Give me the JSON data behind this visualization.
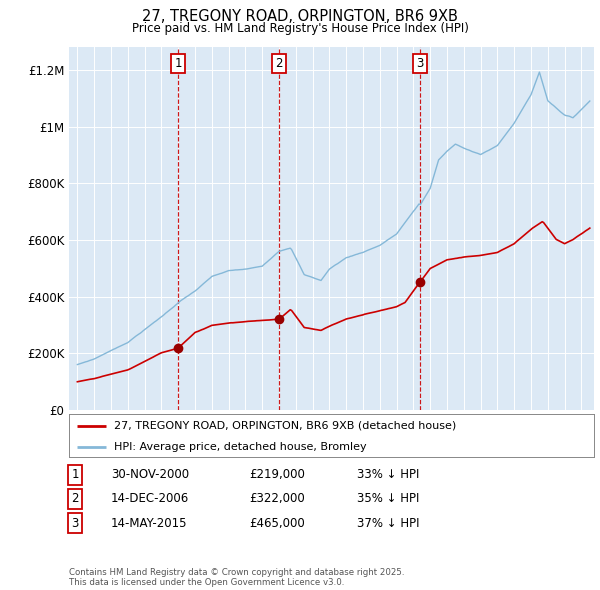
{
  "title_line1": "27, TREGONY ROAD, ORPINGTON, BR6 9XB",
  "title_line2": "Price paid vs. HM Land Registry's House Price Index (HPI)",
  "legend_line1": "27, TREGONY ROAD, ORPINGTON, BR6 9XB (detached house)",
  "legend_line2": "HPI: Average price, detached house, Bromley",
  "sale_labels": [
    "1",
    "2",
    "3"
  ],
  "sale_dates_label": [
    "30-NOV-2000",
    "14-DEC-2006",
    "14-MAY-2015"
  ],
  "sale_prices_label": [
    "£219,000",
    "£322,000",
    "£465,000"
  ],
  "sale_pct_label": [
    "33% ↓ HPI",
    "35% ↓ HPI",
    "37% ↓ HPI"
  ],
  "footnote": "Contains HM Land Registry data © Crown copyright and database right 2025.\nThis data is licensed under the Open Government Licence v3.0.",
  "ylim": [
    0,
    1280000
  ],
  "yticks": [
    0,
    200000,
    400000,
    600000,
    800000,
    1000000,
    1200000
  ],
  "ytick_labels": [
    "£0",
    "£200K",
    "£400K",
    "£600K",
    "£800K",
    "£1M",
    "£1.2M"
  ],
  "background_color": "#ffffff",
  "plot_bg_color": "#dce9f5",
  "red_line_color": "#cc0000",
  "blue_line_color": "#85b8d8",
  "sale_vline_color": "#cc0000",
  "sale_marker_color": "#990000",
  "grid_color": "#ffffff",
  "sale_years": [
    2001.0,
    2007.0,
    2015.4
  ]
}
